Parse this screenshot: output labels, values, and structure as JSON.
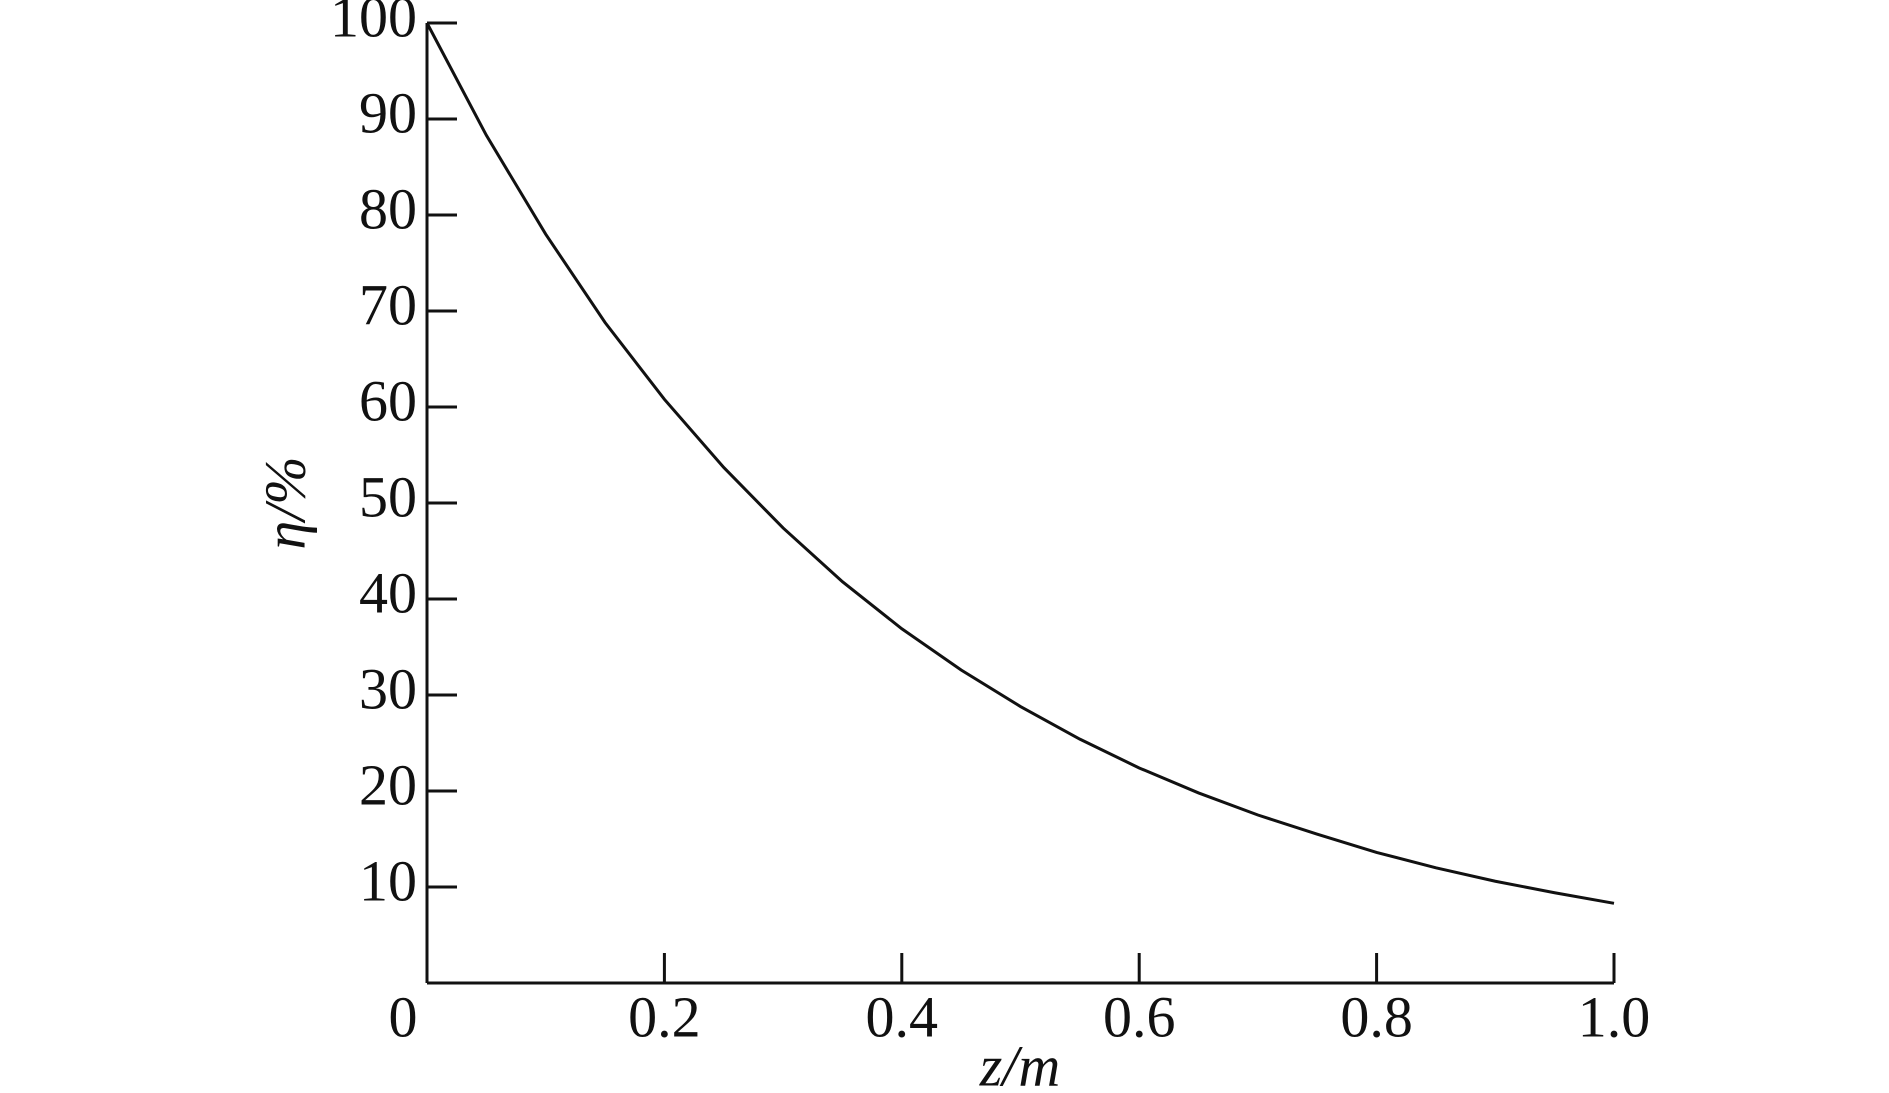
{
  "chart_data": {
    "type": "line",
    "x_label": "z/m",
    "y_label": "η/%",
    "x": [
      0,
      0.05,
      0.1,
      0.15,
      0.2,
      0.25,
      0.3,
      0.35,
      0.4,
      0.45,
      0.5,
      0.55,
      0.6,
      0.65,
      0.7,
      0.75,
      0.8,
      0.85,
      0.9,
      0.95,
      1.0
    ],
    "series": [
      {
        "color": "#111111",
        "values": [
          100,
          88.3,
          78.0,
          68.8,
          60.8,
          53.7,
          47.4,
          41.8,
          36.9,
          32.6,
          28.8,
          25.4,
          22.4,
          19.8,
          17.5,
          15.5,
          13.6,
          12.0,
          10.6,
          9.4,
          8.3
        ]
      }
    ],
    "xlim": [
      0,
      1
    ],
    "ylim": [
      0,
      100
    ],
    "xticks": [
      0,
      0.2,
      0.4,
      0.6,
      0.8,
      {
        "value": 1,
        "label": "1.0"
      }
    ],
    "yticks": [
      10,
      20,
      30,
      40,
      50,
      60,
      70,
      80,
      90,
      100
    ],
    "grid": false
  }
}
